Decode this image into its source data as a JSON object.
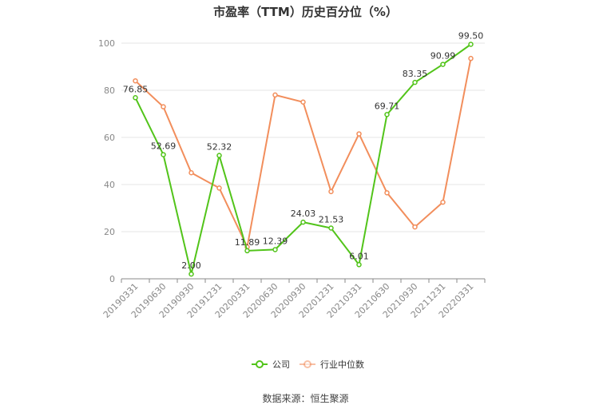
{
  "chart_data": {
    "type": "line",
    "title": "市盈率（TTM）历史百分位（%）",
    "xlabel": "",
    "ylabel": "",
    "categories": [
      "20190331",
      "20190630",
      "20190930",
      "20191231",
      "20200331",
      "20200630",
      "20200930",
      "20201231",
      "20210331",
      "20210630",
      "20210930",
      "20211231",
      "20220331"
    ],
    "ylim": [
      0,
      100
    ],
    "yticks": [
      0,
      20,
      40,
      60,
      80,
      100
    ],
    "grid": true,
    "legend_position": "bottom",
    "series": [
      {
        "name": "公司",
        "color": "#52c41a",
        "values": [
          76.85,
          52.69,
          2.0,
          52.32,
          11.89,
          12.39,
          24.03,
          21.53,
          6.01,
          69.71,
          83.35,
          90.99,
          99.5
        ],
        "labels": [
          "76.85",
          "52.69",
          "2.00",
          "52.32",
          "11.89",
          "12.39",
          "24.03",
          "21.53",
          "6.01",
          "69.71",
          "83.35",
          "90.99",
          "99.50"
        ]
      },
      {
        "name": "行业中位数",
        "color": "#f28e5c",
        "values": [
          84,
          73,
          45,
          38.5,
          13.5,
          78,
          75,
          37,
          61.5,
          36.5,
          22,
          32.5,
          93.5
        ]
      }
    ],
    "source": "数据来源：恒生聚源"
  }
}
